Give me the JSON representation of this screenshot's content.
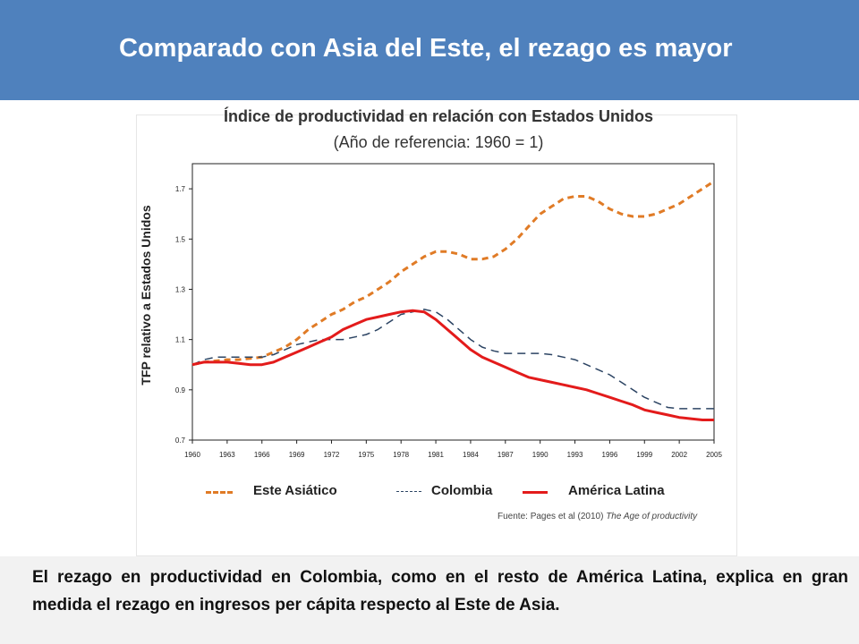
{
  "slide": {
    "title": "Comparado con Asia del Este, el rezago es mayor",
    "bottom_text": "El rezago en productividad en Colombia, como en el resto de América Latina, explica en gran medida el rezago en ingresos per cápita respecto al Este de Asia.",
    "source_prefix": "Fuente: Pages et al (2010)",
    "source_title": "The Age of productivity"
  },
  "colors": {
    "header_bg": "#4f81bd",
    "este_asiatico": "#e07b26",
    "colombia": "#2c4463",
    "america_latina": "#e31b1b"
  },
  "chart_data": {
    "type": "line",
    "title": "Índice de productividad en relación con Estados Unidos",
    "subtitle": "(Año de referencia: 1960 = 1)",
    "ylabel": "TFP relativo a Estados Unidos",
    "xlabel": "",
    "ylim": [
      0.7,
      1.8
    ],
    "yticks": [
      "0.7",
      "0.9",
      "1.1",
      "1.3",
      "1.5",
      "1.7"
    ],
    "xticks": [
      "1960",
      "1963",
      "1966",
      "1969",
      "1972",
      "1975",
      "1978",
      "1981",
      "1984",
      "1987",
      "1990",
      "1993",
      "1996",
      "1999",
      "2002",
      "2005"
    ],
    "legend_position": "bottom",
    "grid": false,
    "x": [
      1960,
      1961,
      1962,
      1963,
      1964,
      1965,
      1966,
      1967,
      1968,
      1969,
      1970,
      1971,
      1972,
      1973,
      1974,
      1975,
      1976,
      1977,
      1978,
      1979,
      1980,
      1981,
      1982,
      1983,
      1984,
      1985,
      1986,
      1987,
      1988,
      1989,
      1990,
      1991,
      1992,
      1993,
      1994,
      1995,
      1996,
      1997,
      1998,
      1999,
      2000,
      2001,
      2002,
      2003,
      2004,
      2005
    ],
    "series": [
      {
        "name": "Este Asiático",
        "style": "dashed",
        "values": [
          1.0,
          1.01,
          1.015,
          1.02,
          1.02,
          1.025,
          1.03,
          1.05,
          1.07,
          1.1,
          1.14,
          1.17,
          1.2,
          1.22,
          1.25,
          1.27,
          1.3,
          1.33,
          1.37,
          1.4,
          1.43,
          1.45,
          1.45,
          1.44,
          1.42,
          1.42,
          1.43,
          1.46,
          1.5,
          1.55,
          1.6,
          1.63,
          1.66,
          1.67,
          1.67,
          1.65,
          1.62,
          1.6,
          1.59,
          1.59,
          1.6,
          1.62,
          1.64,
          1.67,
          1.7,
          1.73
        ]
      },
      {
        "name": "Colombia",
        "style": "long-dash",
        "values": [
          1.0,
          1.02,
          1.03,
          1.03,
          1.03,
          1.03,
          1.03,
          1.04,
          1.06,
          1.08,
          1.09,
          1.1,
          1.1,
          1.1,
          1.11,
          1.12,
          1.14,
          1.17,
          1.2,
          1.21,
          1.22,
          1.21,
          1.18,
          1.14,
          1.1,
          1.07,
          1.055,
          1.045,
          1.045,
          1.045,
          1.045,
          1.04,
          1.03,
          1.02,
          1.0,
          0.98,
          0.96,
          0.93,
          0.9,
          0.87,
          0.85,
          0.83,
          0.825,
          0.825,
          0.825,
          0.825
        ]
      },
      {
        "name": "América Latina",
        "style": "solid",
        "values": [
          1.0,
          1.01,
          1.01,
          1.01,
          1.005,
          1.0,
          1.0,
          1.01,
          1.03,
          1.05,
          1.07,
          1.09,
          1.11,
          1.14,
          1.16,
          1.18,
          1.19,
          1.2,
          1.21,
          1.215,
          1.21,
          1.18,
          1.14,
          1.1,
          1.06,
          1.03,
          1.01,
          0.99,
          0.97,
          0.95,
          0.94,
          0.93,
          0.92,
          0.91,
          0.9,
          0.885,
          0.87,
          0.855,
          0.84,
          0.82,
          0.81,
          0.8,
          0.79,
          0.785,
          0.78,
          0.78
        ]
      }
    ]
  }
}
